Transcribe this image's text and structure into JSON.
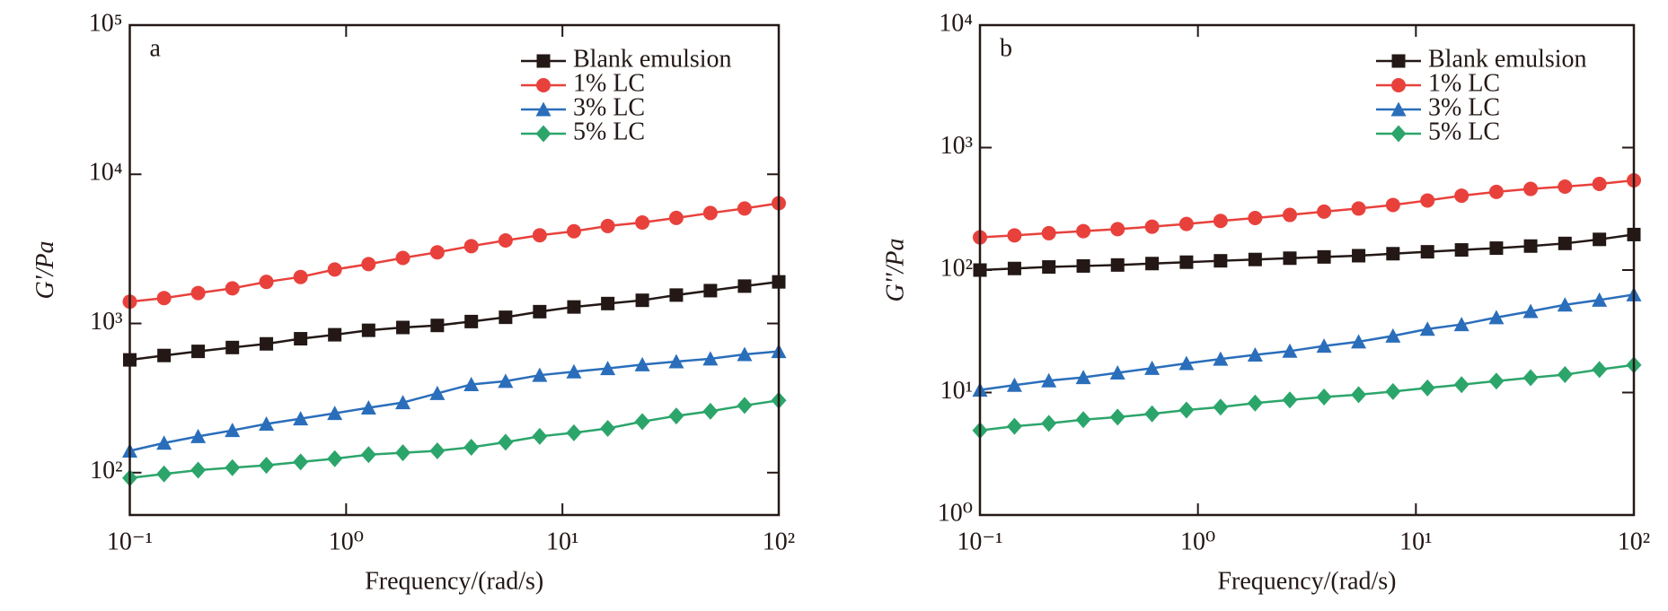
{
  "chart_data": [
    {
      "type": "line",
      "panel": "a",
      "x_label": "Frequency/(rad/s)",
      "y_label": "G'/Pa",
      "xlog": true,
      "ylog": true,
      "legend": "upper right",
      "x": [
        0.1,
        0.144,
        0.207,
        0.298,
        0.428,
        0.616,
        0.886,
        1.27,
        1.83,
        2.64,
        3.79,
        5.46,
        7.85,
        11.3,
        16.2,
        23.4,
        33.6,
        48.3,
        69.5,
        100
      ],
      "xlim": [
        0.1,
        100
      ],
      "ylim": [
        52,
        100000
      ],
      "xticks": [
        {
          "value": 0.1,
          "label": "10⁻¹"
        },
        {
          "value": 1,
          "label": "10⁰"
        },
        {
          "value": 10,
          "label": "10¹"
        },
        {
          "value": 100,
          "label": "10²"
        }
      ],
      "yticks": [
        {
          "value": 100,
          "label": "10²"
        },
        {
          "value": 1000,
          "label": "10³"
        },
        {
          "value": 10000,
          "label": "10⁴"
        },
        {
          "value": 100000,
          "label": "10⁵"
        }
      ],
      "series": [
        {
          "name": "Blank emulsion",
          "color": "#231815",
          "marker": "square",
          "values": [
            570,
            610,
            650,
            690,
            730,
            790,
            840,
            900,
            940,
            970,
            1030,
            1100,
            1200,
            1290,
            1360,
            1430,
            1550,
            1660,
            1780,
            1900
          ]
        },
        {
          "name": "1% LC",
          "color": "#e8413c",
          "marker": "circle",
          "values": [
            1400,
            1480,
            1600,
            1720,
            1900,
            2050,
            2300,
            2500,
            2750,
            3000,
            3300,
            3600,
            3900,
            4150,
            4500,
            4750,
            5100,
            5500,
            5900,
            6400
          ]
        },
        {
          "name": "3% LC",
          "color": "#2a6ebb",
          "marker": "triangle",
          "values": [
            140,
            158,
            175,
            192,
            212,
            230,
            250,
            272,
            295,
            340,
            390,
            410,
            450,
            475,
            500,
            530,
            555,
            580,
            620,
            650
          ]
        },
        {
          "name": "5% LC",
          "color": "#2ca56b",
          "marker": "diamond",
          "values": [
            92,
            98,
            104,
            108,
            112,
            118,
            124,
            132,
            136,
            140,
            148,
            160,
            175,
            185,
            198,
            220,
            240,
            258,
            282,
            305
          ]
        }
      ]
    },
    {
      "type": "line",
      "panel": "b",
      "x_label": "Frequency/(rad/s)",
      "y_label": "G''/Pa",
      "xlog": true,
      "ylog": true,
      "legend": "upper right",
      "x": [
        0.1,
        0.144,
        0.207,
        0.298,
        0.428,
        0.616,
        0.886,
        1.27,
        1.83,
        2.64,
        3.79,
        5.46,
        7.85,
        11.3,
        16.2,
        23.4,
        33.6,
        48.3,
        69.5,
        100
      ],
      "xlim": [
        0.1,
        100
      ],
      "ylim": [
        1,
        10000
      ],
      "xticks": [
        {
          "value": 0.1,
          "label": "10⁻¹"
        },
        {
          "value": 1,
          "label": "10⁰"
        },
        {
          "value": 10,
          "label": "10¹"
        },
        {
          "value": 100,
          "label": "10²"
        }
      ],
      "yticks": [
        {
          "value": 1,
          "label": "10⁰"
        },
        {
          "value": 10,
          "label": "10¹"
        },
        {
          "value": 100,
          "label": "10²"
        },
        {
          "value": 1000,
          "label": "10³"
        },
        {
          "value": 10000,
          "label": "10⁴"
        }
      ],
      "series": [
        {
          "name": "Blank emulsion",
          "color": "#231815",
          "marker": "square",
          "values": [
            100,
            103,
            106,
            108,
            110,
            113,
            116,
            119,
            122,
            125,
            128,
            131,
            136,
            141,
            146,
            151,
            157,
            165,
            178,
            195
          ]
        },
        {
          "name": "1% LC",
          "color": "#e8413c",
          "marker": "circle",
          "values": [
            185,
            192,
            200,
            208,
            216,
            226,
            238,
            252,
            266,
            282,
            300,
            318,
            340,
            370,
            405,
            435,
            460,
            480,
            505,
            540
          ]
        },
        {
          "name": "3% LC",
          "color": "#2a6ebb",
          "marker": "triangle",
          "values": [
            10.5,
            11.5,
            12.5,
            13.3,
            14.5,
            15.8,
            17.3,
            18.8,
            20.3,
            21.8,
            24,
            26,
            29,
            33,
            36,
            41,
            46,
            52,
            57,
            63
          ]
        },
        {
          "name": "5% LC",
          "color": "#2ca56b",
          "marker": "diamond",
          "values": [
            4.9,
            5.3,
            5.6,
            6.0,
            6.3,
            6.7,
            7.2,
            7.6,
            8.2,
            8.7,
            9.2,
            9.6,
            10.2,
            10.9,
            11.6,
            12.4,
            13.2,
            14.0,
            15.4,
            16.8
          ]
        }
      ]
    }
  ]
}
